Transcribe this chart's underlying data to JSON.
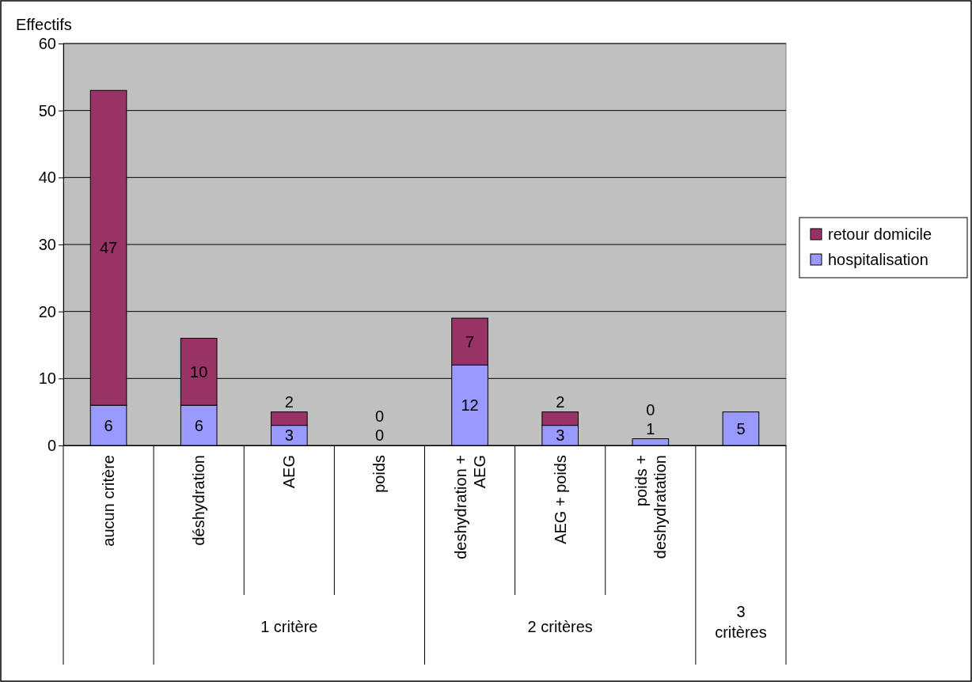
{
  "chart_data": {
    "type": "bar",
    "stacked": true,
    "ylabel": "Effectifs",
    "categories": [
      "aucun critère",
      "déshydration",
      "AEG",
      "poids",
      "deshydration + AEG",
      "AEG + poids",
      "poids + deshydratation",
      null
    ],
    "series": [
      {
        "name": "hospitalisation",
        "color": "#9999ff",
        "values": [
          6,
          6,
          3,
          0,
          12,
          3,
          1,
          5
        ],
        "value_labels": [
          "6",
          "6",
          "3",
          "0",
          "12",
          "3",
          "1",
          "5"
        ]
      },
      {
        "name": "retour domicile",
        "color": "#993366",
        "values": [
          47,
          10,
          2,
          0,
          7,
          2,
          0,
          null
        ],
        "value_labels": [
          "47",
          "10",
          "2",
          "0",
          "7",
          "2",
          "0",
          null
        ]
      }
    ],
    "annotations": [
      "1 critère",
      "2 critères",
      "3 critères"
    ],
    "ylim": [
      0,
      60
    ],
    "yticks": [
      0,
      10,
      20,
      30,
      40,
      50,
      60
    ],
    "grid": "y",
    "legend": "right"
  }
}
